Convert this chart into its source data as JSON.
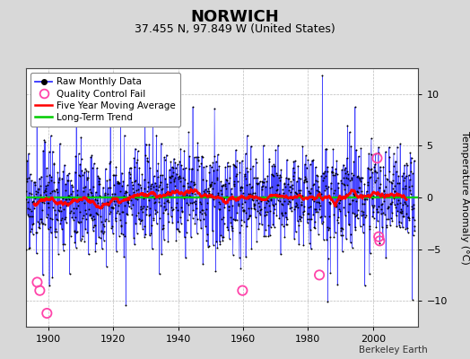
{
  "title": "NORWICH",
  "subtitle": "37.455 N, 97.849 W (United States)",
  "ylabel": "Temperature Anomaly (°C)",
  "attribution": "Berkeley Earth",
  "xlim": [
    1893,
    2014
  ],
  "ylim": [
    -12.5,
    12.5
  ],
  "yticks": [
    -10,
    -5,
    0,
    5,
    10
  ],
  "xticks": [
    1900,
    1920,
    1940,
    1960,
    1980,
    2000
  ],
  "start_year": 1893,
  "end_year": 2013,
  "bg_color": "#d8d8d8",
  "plot_bg_color": "#ffffff",
  "grid_color": "#bbbbbb",
  "line_color_raw": "#3333ff",
  "dot_color_raw": "#000000",
  "line_color_avg": "#ff0000",
  "line_color_trend": "#00cc00",
  "qc_color": "#ff44aa",
  "seed": 17,
  "qc_points_x": [
    1896.5,
    1897.3,
    1899.5,
    1959.8,
    1983.5,
    2001.3,
    2001.8,
    2002.1
  ],
  "qc_points_y": [
    -8.2,
    -9.0,
    -11.2,
    -9.0,
    -7.5,
    3.8,
    -3.8,
    -4.2
  ],
  "title_fontsize": 13,
  "subtitle_fontsize": 9,
  "label_fontsize": 8,
  "tick_fontsize": 8,
  "legend_fontsize": 7.5
}
